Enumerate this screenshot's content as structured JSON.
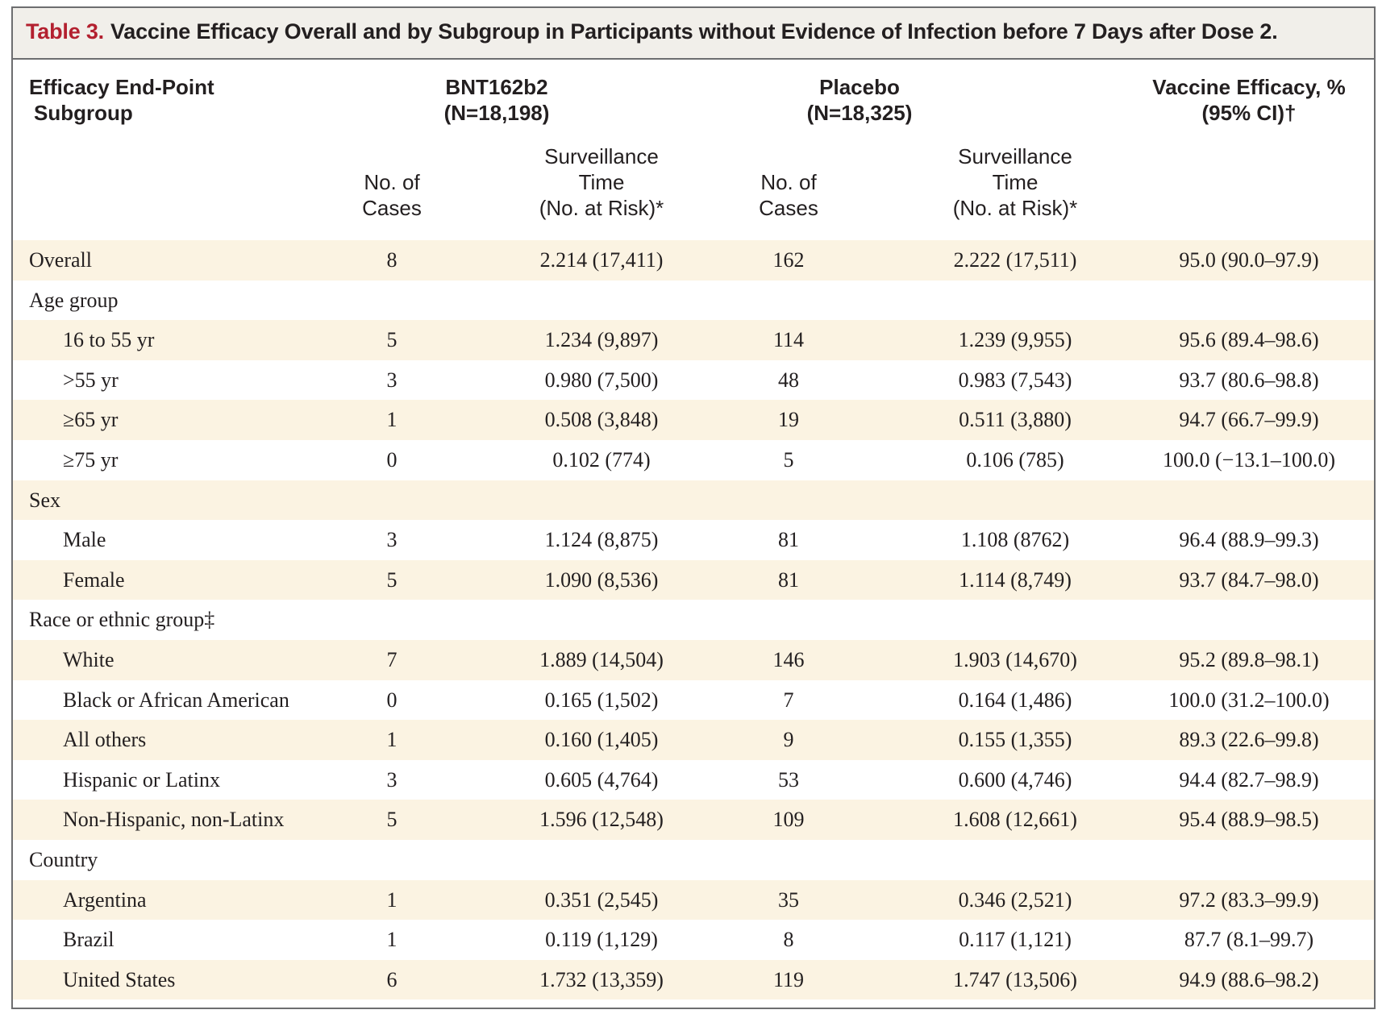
{
  "table": {
    "label": "Table 3.",
    "title": "Vaccine Efficacy Overall and by Subgroup in Participants without Evidence of Infection before 7 Days after Dose 2.",
    "header": {
      "endpoint_line1": "Efficacy End-Point",
      "endpoint_line2": "Subgroup",
      "group1_name": "BNT162b2",
      "group1_n": "(N=18,198)",
      "group2_name": "Placebo",
      "group2_n": "(N=18,325)",
      "efficacy_line1": "Vaccine Efficacy, %",
      "efficacy_line2": "(95% CI)†",
      "cases_line1": "No. of",
      "cases_line2": "Cases",
      "surv_line1": "Surveillance",
      "surv_line2": "Time",
      "surv_line3": "(No. at Risk)*"
    },
    "rows": [
      {
        "label": "Overall",
        "indent": false,
        "shade": true,
        "n1": "8",
        "s1": "2.214 (17,411)",
        "n2": "162",
        "s2": "2.222 (17,511)",
        "ve": "95.0 (90.0–97.9)"
      },
      {
        "label": "Age group",
        "indent": false,
        "shade": false,
        "n1": "",
        "s1": "",
        "n2": "",
        "s2": "",
        "ve": ""
      },
      {
        "label": "16 to 55 yr",
        "indent": true,
        "shade": true,
        "n1": "5",
        "s1": "1.234 (9,897)",
        "n2": "114",
        "s2": "1.239 (9,955)",
        "ve": "95.6 (89.4–98.6)"
      },
      {
        "label": ">55 yr",
        "indent": true,
        "shade": false,
        "n1": "3",
        "s1": "0.980 (7,500)",
        "n2": "48",
        "s2": "0.983 (7,543)",
        "ve": "93.7 (80.6–98.8)"
      },
      {
        "label": "≥65 yr",
        "indent": true,
        "shade": true,
        "n1": "1",
        "s1": "0.508 (3,848)",
        "n2": "19",
        "s2": "0.511 (3,880)",
        "ve": "94.7 (66.7–99.9)"
      },
      {
        "label": "≥75 yr",
        "indent": true,
        "shade": false,
        "n1": "0",
        "s1": "0.102 (774)",
        "n2": "5",
        "s2": "0.106 (785)",
        "ve": "100.0 (−13.1–100.0)"
      },
      {
        "label": "Sex",
        "indent": false,
        "shade": true,
        "n1": "",
        "s1": "",
        "n2": "",
        "s2": "",
        "ve": ""
      },
      {
        "label": "Male",
        "indent": true,
        "shade": false,
        "n1": "3",
        "s1": "1.124 (8,875)",
        "n2": "81",
        "s2": "1.108 (8762)",
        "ve": "96.4 (88.9–99.3)"
      },
      {
        "label": "Female",
        "indent": true,
        "shade": true,
        "n1": "5",
        "s1": "1.090 (8,536)",
        "n2": "81",
        "s2": "1.114 (8,749)",
        "ve": "93.7 (84.7–98.0)"
      },
      {
        "label": "Race or ethnic group‡",
        "indent": false,
        "shade": false,
        "n1": "",
        "s1": "",
        "n2": "",
        "s2": "",
        "ve": ""
      },
      {
        "label": "White",
        "indent": true,
        "shade": true,
        "n1": "7",
        "s1": "1.889 (14,504)",
        "n2": "146",
        "s2": "1.903 (14,670)",
        "ve": "95.2 (89.8–98.1)"
      },
      {
        "label": "Black or African American",
        "indent": true,
        "shade": false,
        "n1": "0",
        "s1": "0.165 (1,502)",
        "n2": "7",
        "s2": "0.164 (1,486)",
        "ve": "100.0 (31.2–100.0)"
      },
      {
        "label": "All others",
        "indent": true,
        "shade": true,
        "n1": "1",
        "s1": "0.160 (1,405)",
        "n2": "9",
        "s2": "0.155 (1,355)",
        "ve": "89.3 (22.6–99.8)"
      },
      {
        "label": "Hispanic or Latinx",
        "indent": true,
        "shade": false,
        "n1": "3",
        "s1": "0.605 (4,764)",
        "n2": "53",
        "s2": "0.600 (4,746)",
        "ve": "94.4 (82.7–98.9)"
      },
      {
        "label": "Non-Hispanic, non-Latinx",
        "indent": true,
        "shade": true,
        "n1": "5",
        "s1": "1.596 (12,548)",
        "n2": "109",
        "s2": "1.608 (12,661)",
        "ve": "95.4 (88.9–98.5)"
      },
      {
        "label": "Country",
        "indent": false,
        "shade": false,
        "n1": "",
        "s1": "",
        "n2": "",
        "s2": "",
        "ve": ""
      },
      {
        "label": "Argentina",
        "indent": true,
        "shade": true,
        "n1": "1",
        "s1": "0.351 (2,545)",
        "n2": "35",
        "s2": "0.346 (2,521)",
        "ve": "97.2 (83.3–99.9)"
      },
      {
        "label": "Brazil",
        "indent": true,
        "shade": false,
        "n1": "1",
        "s1": "0.119 (1,129)",
        "n2": "8",
        "s2": "0.117 (1,121)",
        "ve": "87.7 (8.1–99.7)"
      },
      {
        "label": "United States",
        "indent": true,
        "shade": true,
        "n1": "6",
        "s1": "1.732 (13,359)",
        "n2": "119",
        "s2": "1.747 (13,506)",
        "ve": "94.9 (88.6–98.2)"
      }
    ]
  }
}
